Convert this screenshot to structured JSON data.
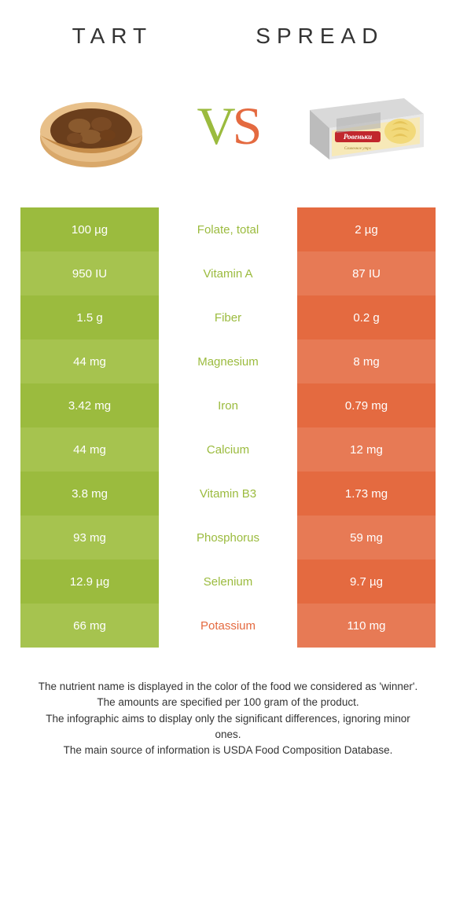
{
  "left_title": "TART",
  "right_title": "SPREAD",
  "vs_label": "VS",
  "vs_left_color": "#9bbb3e",
  "vs_right_color": "#e46a40",
  "colors": {
    "left": "#9bbb3e",
    "right": "#e46a40",
    "left_alt": "#a6c34f",
    "right_alt": "#e77a55",
    "white": "#ffffff"
  },
  "rows": [
    {
      "left": "100 µg",
      "label": "Folate, total",
      "right": "2 µg",
      "winner": "left"
    },
    {
      "left": "950 IU",
      "label": "Vitamin A",
      "right": "87 IU",
      "winner": "left"
    },
    {
      "left": "1.5 g",
      "label": "Fiber",
      "right": "0.2 g",
      "winner": "left"
    },
    {
      "left": "44 mg",
      "label": "Magnesium",
      "right": "8 mg",
      "winner": "left"
    },
    {
      "left": "3.42 mg",
      "label": "Iron",
      "right": "0.79 mg",
      "winner": "left"
    },
    {
      "left": "44 mg",
      "label": "Calcium",
      "right": "12 mg",
      "winner": "left"
    },
    {
      "left": "3.8 mg",
      "label": "Vitamin B3",
      "right": "1.73 mg",
      "winner": "left"
    },
    {
      "left": "93 mg",
      "label": "Phosphorus",
      "right": "59 mg",
      "winner": "left"
    },
    {
      "left": "12.9 µg",
      "label": "Selenium",
      "right": "9.7 µg",
      "winner": "left"
    },
    {
      "left": "66 mg",
      "label": "Potassium",
      "right": "110 mg",
      "winner": "right"
    }
  ],
  "footnotes": [
    "The nutrient name is displayed in the color of the food we considered as 'winner'.",
    "The amounts are specified per 100 gram of the product.",
    "The infographic aims to display only the significant differences, ignoring minor ones.",
    "The main source of information is USDA Food Composition Database."
  ],
  "spread_brand": "Ровеньки"
}
